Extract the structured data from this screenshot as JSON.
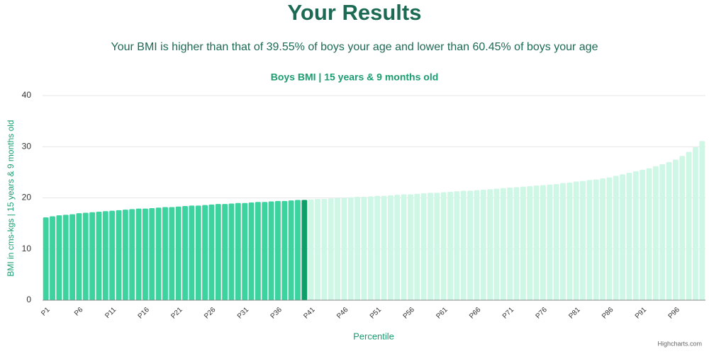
{
  "header": {
    "title": "Your Results",
    "subtitle": "Your BMI is higher than that of 39.55% of boys your age and lower than 60.45% of boys your age"
  },
  "chart_data": {
    "type": "bar",
    "title": "Boys BMI | 15 years & 9 months old",
    "x_label": "Percentile",
    "y_label": "BMI in cms-kgs | 15 years & 9 months old",
    "credit": "Highcharts.com",
    "categories": [
      "P1",
      null,
      null,
      null,
      null,
      "P6",
      null,
      null,
      null,
      null,
      "P11",
      null,
      null,
      null,
      null,
      "P16",
      null,
      null,
      null,
      null,
      "P21",
      null,
      null,
      null,
      null,
      "P26",
      null,
      null,
      null,
      null,
      "P31",
      null,
      null,
      null,
      null,
      "P36",
      null,
      null,
      null,
      null,
      "P41",
      null,
      null,
      null,
      null,
      "P46",
      null,
      null,
      null,
      null,
      "P51",
      null,
      null,
      null,
      null,
      "P56",
      null,
      null,
      null,
      null,
      "P61",
      null,
      null,
      null,
      null,
      "P66",
      null,
      null,
      null,
      null,
      "P71",
      null,
      null,
      null,
      null,
      "P76",
      null,
      null,
      null,
      null,
      "P81",
      null,
      null,
      null,
      null,
      "P86",
      null,
      null,
      null,
      null,
      "P91",
      null,
      null,
      null,
      null,
      "P96",
      null,
      null,
      null,
      null
    ],
    "values": [
      16.2,
      16.4,
      16.6,
      16.7,
      16.8,
      17.0,
      17.1,
      17.2,
      17.3,
      17.4,
      17.5,
      17.6,
      17.7,
      17.8,
      17.9,
      17.9,
      18.0,
      18.1,
      18.2,
      18.2,
      18.3,
      18.4,
      18.5,
      18.5,
      18.6,
      18.7,
      18.8,
      18.8,
      18.9,
      19.0,
      19.0,
      19.1,
      19.2,
      19.2,
      19.3,
      19.4,
      19.4,
      19.5,
      19.6,
      19.6,
      19.7,
      19.8,
      19.8,
      19.9,
      20.0,
      20.0,
      20.1,
      20.2,
      20.2,
      20.3,
      20.4,
      20.4,
      20.5,
      20.6,
      20.7,
      20.7,
      20.8,
      20.9,
      21.0,
      21.0,
      21.1,
      21.2,
      21.3,
      21.4,
      21.4,
      21.5,
      21.6,
      21.7,
      21.8,
      21.9,
      22.0,
      22.1,
      22.2,
      22.3,
      22.4,
      22.5,
      22.6,
      22.7,
      22.9,
      23.0,
      23.2,
      23.3,
      23.5,
      23.6,
      23.8,
      24.0,
      24.3,
      24.6,
      24.9,
      25.2,
      25.5,
      25.8,
      26.2,
      26.6,
      27.0,
      27.5,
      28.2,
      29.0,
      29.9,
      31.1
    ],
    "colors": [
      "#3dd39f",
      "#3dd39f",
      "#3dd39f",
      "#3dd39f",
      "#3dd39f",
      "#3dd39f",
      "#3dd39f",
      "#3dd39f",
      "#3dd39f",
      "#3dd39f",
      "#3dd39f",
      "#3dd39f",
      "#3dd39f",
      "#3dd39f",
      "#3dd39f",
      "#3dd39f",
      "#3dd39f",
      "#3dd39f",
      "#3dd39f",
      "#3dd39f",
      "#3dd39f",
      "#3dd39f",
      "#3dd39f",
      "#3dd39f",
      "#3dd39f",
      "#3dd39f",
      "#3dd39f",
      "#3dd39f",
      "#3dd39f",
      "#3dd39f",
      "#3dd39f",
      "#3dd39f",
      "#3dd39f",
      "#3dd39f",
      "#3dd39f",
      "#3dd39f",
      "#3dd39f",
      "#3dd39f",
      "#3dd39f",
      "#0f9d6a",
      "#cff7e6",
      "#cff7e6",
      "#cff7e6",
      "#cff7e6",
      "#cff7e6",
      "#cff7e6",
      "#cff7e6",
      "#cff7e6",
      "#cff7e6",
      "#cff7e6",
      "#cff7e6",
      "#cff7e6",
      "#cff7e6",
      "#cff7e6",
      "#cff7e6",
      "#cff7e6",
      "#cff7e6",
      "#cff7e6",
      "#cff7e6",
      "#cff7e6",
      "#cff7e6",
      "#cff7e6",
      "#cff7e6",
      "#cff7e6",
      "#cff7e6",
      "#cff7e6",
      "#cff7e6",
      "#cff7e6",
      "#cff7e6",
      "#cff7e6",
      "#cff7e6",
      "#cff7e6",
      "#cff7e6",
      "#cff7e6",
      "#cff7e6",
      "#cff7e6",
      "#cff7e6",
      "#cff7e6",
      "#cff7e6",
      "#cff7e6",
      "#cff7e6",
      "#cff7e6",
      "#cff7e6",
      "#cff7e6",
      "#cff7e6",
      "#cff7e6",
      "#cff7e6",
      "#cff7e6",
      "#cff7e6",
      "#cff7e6",
      "#cff7e6",
      "#cff7e6",
      "#cff7e6",
      "#cff7e6",
      "#cff7e6",
      "#cff7e6",
      "#cff7e6",
      "#cff7e6",
      "#cff7e6",
      "#cff7e6"
    ],
    "ylim": [
      0,
      40
    ],
    "yticks": [
      0,
      10,
      20,
      30,
      40
    ],
    "grid": true
  }
}
